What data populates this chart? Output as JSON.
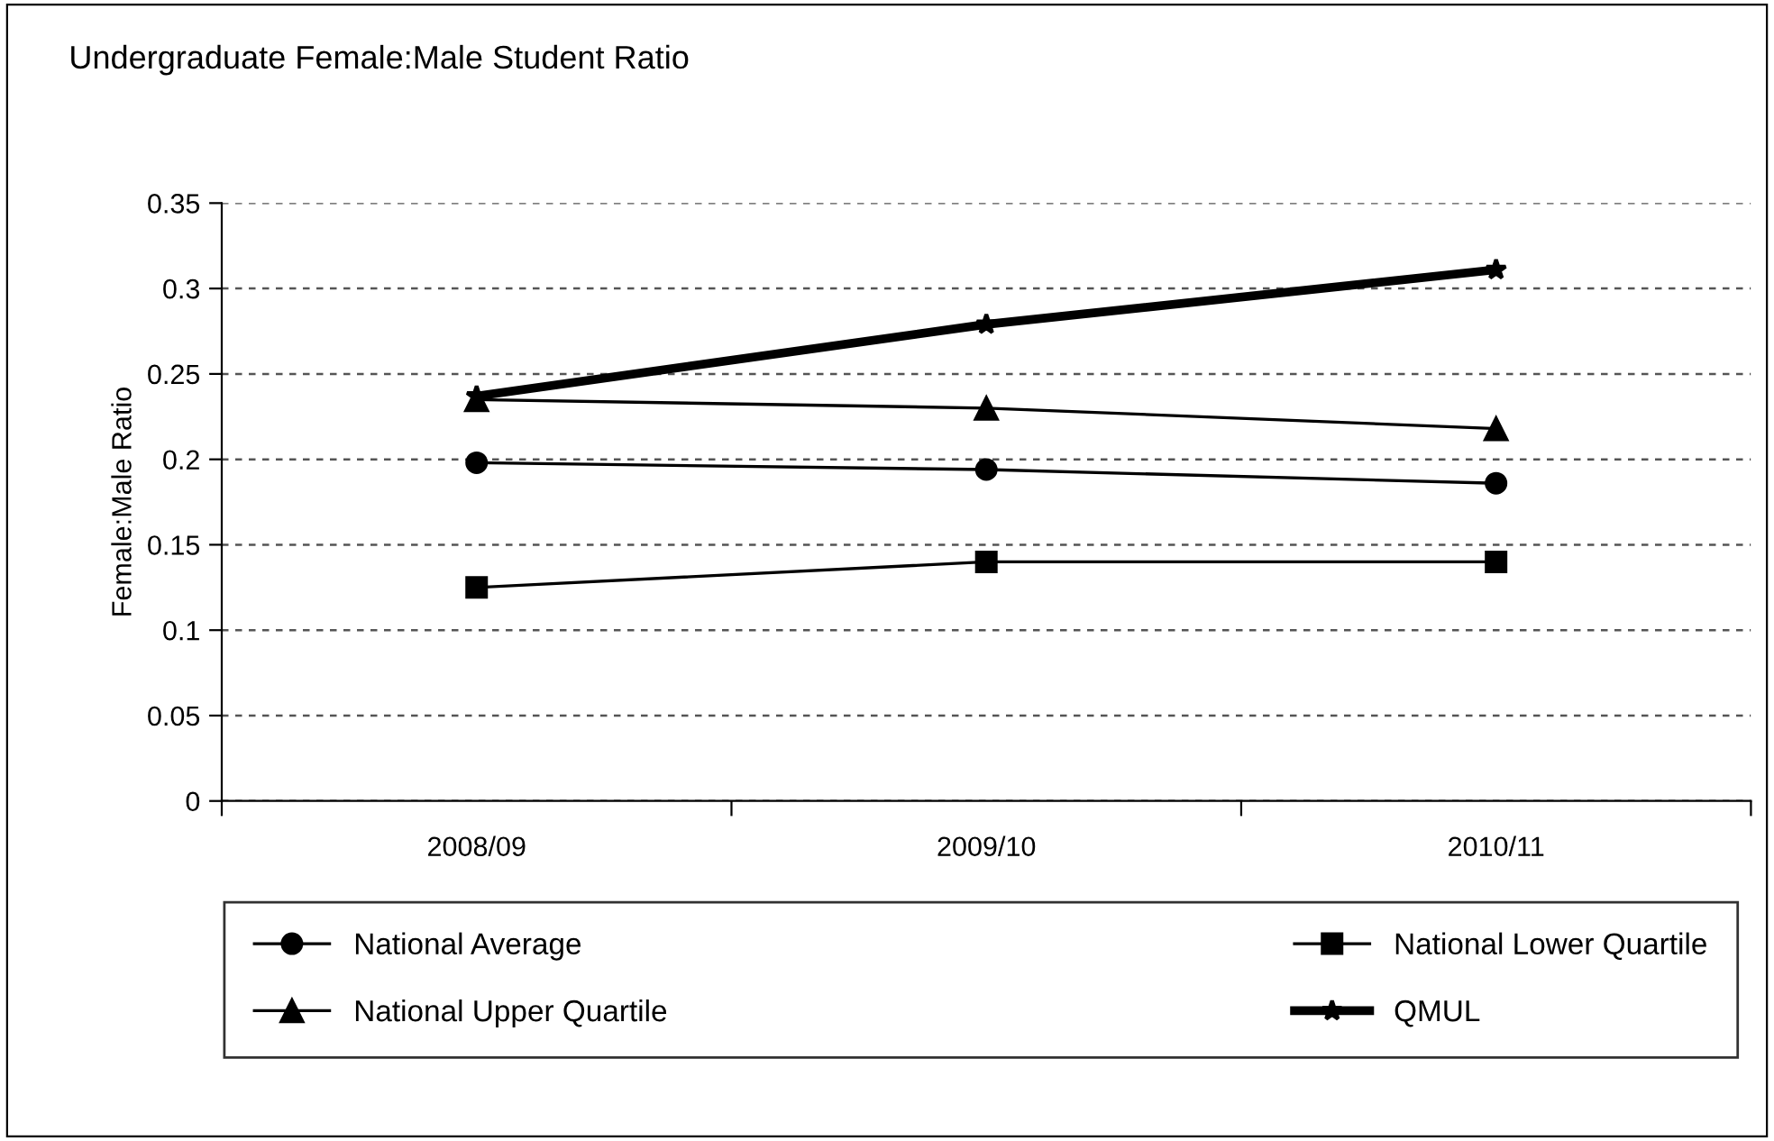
{
  "chart_data": {
    "type": "line",
    "title": "Undergraduate Female:Male Student Ratio",
    "ylabel": "Female:Male Ratio",
    "categories": [
      "2008/09",
      "2009/10",
      "2010/11"
    ],
    "series": [
      {
        "name": "National Average",
        "color": "#000000",
        "marker": "circle",
        "values": [
          0.198,
          0.194,
          0.186
        ]
      },
      {
        "name": "National Lower Quartile",
        "color": "#000000",
        "marker": "square",
        "values": [
          0.125,
          0.14,
          0.14
        ]
      },
      {
        "name": "National Upper Quartile",
        "color": "#000000",
        "marker": "triangle",
        "values": [
          0.235,
          0.23,
          0.218
        ]
      },
      {
        "name": "QMUL",
        "color": "#000000",
        "marker": "star",
        "values": [
          0.237,
          0.279,
          0.311
        ]
      }
    ],
    "ylim": [
      0,
      0.35
    ],
    "yticks": [
      0,
      0.05,
      0.1,
      0.15,
      0.2,
      0.25,
      0.3,
      0.35
    ],
    "grid": "y",
    "legend": "bottom"
  }
}
